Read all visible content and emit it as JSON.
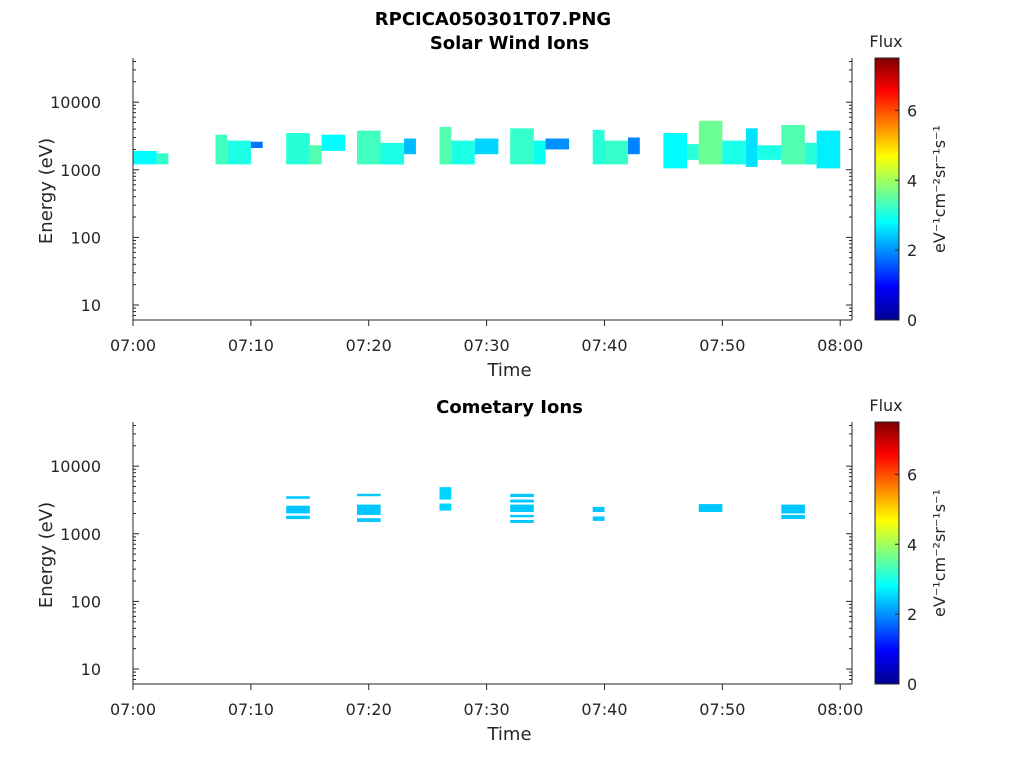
{
  "figure": {
    "title": "RPCICA050301T07.PNG"
  },
  "colormap": [
    "#00008f",
    "#0000ff",
    "#0080ff",
    "#00ffff",
    "#80ff80",
    "#ffff00",
    "#ff8000",
    "#ff0000",
    "#800000"
  ],
  "chart_data": [
    {
      "type": "heatmap",
      "title": "Solar Wind Ions",
      "xlabel": "Time",
      "ylabel": "Energy (eV)",
      "x_range": [
        "07:00",
        "08:01"
      ],
      "x_ticks": [
        "07:00",
        "07:10",
        "07:20",
        "07:30",
        "07:40",
        "07:50",
        "08:00"
      ],
      "y_scale": "log",
      "y_range": [
        6,
        45000
      ],
      "y_ticks": [
        "10",
        "100",
        "1000",
        "10000"
      ],
      "colorbar": {
        "title": "Flux",
        "unit_text": "eV⁻¹cm⁻²sr⁻¹s⁻¹",
        "range": [
          0,
          7.5
        ],
        "ticks": [
          "0",
          "2",
          "4",
          "6"
        ]
      },
      "cells": [
        [
          "07:00",
          "07:02",
          1200,
          1900,
          2.8
        ],
        [
          "07:02",
          "07:03",
          1200,
          1750,
          3.2
        ],
        [
          "07:07",
          "07:08",
          1200,
          3300,
          3.3
        ],
        [
          "07:08",
          "07:10",
          1200,
          2700,
          3.0
        ],
        [
          "07:10",
          "07:11",
          2100,
          2600,
          1.8
        ],
        [
          "07:13",
          "07:15",
          1200,
          3500,
          3.1
        ],
        [
          "07:15",
          "07:16",
          1200,
          2300,
          3.4
        ],
        [
          "07:16",
          "07:18",
          1900,
          3300,
          2.8
        ],
        [
          "07:19",
          "07:21",
          1200,
          3800,
          3.3
        ],
        [
          "07:21",
          "07:23",
          1200,
          2500,
          3.0
        ],
        [
          "07:23",
          "07:24",
          1700,
          2900,
          2.3
        ],
        [
          "07:26",
          "07:27",
          1200,
          4300,
          3.4
        ],
        [
          "07:27",
          "07:29",
          1200,
          2700,
          3.0
        ],
        [
          "07:29",
          "07:31",
          1700,
          2900,
          2.5
        ],
        [
          "07:32",
          "07:34",
          1200,
          4100,
          3.2
        ],
        [
          "07:34",
          "07:35",
          1200,
          2700,
          2.9
        ],
        [
          "07:35",
          "07:37",
          2000,
          2900,
          2.0
        ],
        [
          "07:39",
          "07:40",
          1200,
          3900,
          3.1
        ],
        [
          "07:40",
          "07:42",
          1200,
          2700,
          3.2
        ],
        [
          "07:42",
          "07:43",
          1700,
          3000,
          1.9
        ],
        [
          "07:45",
          "07:47",
          1050,
          3500,
          2.8
        ],
        [
          "07:47",
          "07:48",
          1400,
          2400,
          3.1
        ],
        [
          "07:48",
          "07:50",
          1200,
          5300,
          3.6
        ],
        [
          "07:50",
          "07:52",
          1200,
          2700,
          3.0
        ],
        [
          "07:52",
          "07:53",
          1100,
          4100,
          2.6
        ],
        [
          "07:53",
          "07:55",
          1400,
          2300,
          3.0
        ],
        [
          "07:55",
          "07:57",
          1200,
          4600,
          3.4
        ],
        [
          "07:57",
          "07:58",
          1200,
          2500,
          3.1
        ],
        [
          "07:58",
          "08:00",
          1050,
          3800,
          2.7
        ]
      ]
    },
    {
      "type": "heatmap",
      "title": "Cometary Ions",
      "xlabel": "Time",
      "ylabel": "Energy (eV)",
      "x_range": [
        "07:00",
        "08:01"
      ],
      "x_ticks": [
        "07:00",
        "07:10",
        "07:20",
        "07:30",
        "07:40",
        "07:50",
        "08:00"
      ],
      "y_scale": "log",
      "y_range": [
        6,
        45000
      ],
      "y_ticks": [
        "10",
        "100",
        "1000",
        "10000"
      ],
      "colorbar": {
        "title": "Flux",
        "unit_text": "eV⁻¹cm⁻²sr⁻¹s⁻¹",
        "range": [
          0,
          7.5
        ],
        "ticks": [
          "0",
          "2",
          "4",
          "6"
        ]
      },
      "cells": [
        [
          "07:13",
          "07:15",
          3300,
          3600,
          2.4
        ],
        [
          "07:13",
          "07:15",
          2000,
          2600,
          2.4
        ],
        [
          "07:13",
          "07:15",
          1650,
          1850,
          2.4
        ],
        [
          "07:19",
          "07:21",
          3600,
          3900,
          2.4
        ],
        [
          "07:19",
          "07:21",
          1900,
          2700,
          2.4
        ],
        [
          "07:19",
          "07:21",
          1500,
          1700,
          2.4
        ],
        [
          "07:26",
          "07:27",
          3200,
          4900,
          2.5
        ],
        [
          "07:26",
          "07:27",
          2200,
          2800,
          2.5
        ],
        [
          "07:32",
          "07:34",
          3500,
          3900,
          2.4
        ],
        [
          "07:32",
          "07:34",
          2900,
          3200,
          2.4
        ],
        [
          "07:32",
          "07:34",
          2100,
          2700,
          2.4
        ],
        [
          "07:32",
          "07:34",
          1750,
          1900,
          2.4
        ],
        [
          "07:32",
          "07:34",
          1450,
          1600,
          2.4
        ],
        [
          "07:39",
          "07:40",
          2100,
          2500,
          2.4
        ],
        [
          "07:39",
          "07:40",
          1550,
          1800,
          2.4
        ],
        [
          "07:48",
          "07:50",
          2100,
          2750,
          2.4
        ],
        [
          "07:55",
          "07:57",
          2000,
          2700,
          2.4
        ],
        [
          "07:55",
          "07:57",
          1650,
          1900,
          2.4
        ]
      ]
    }
  ]
}
